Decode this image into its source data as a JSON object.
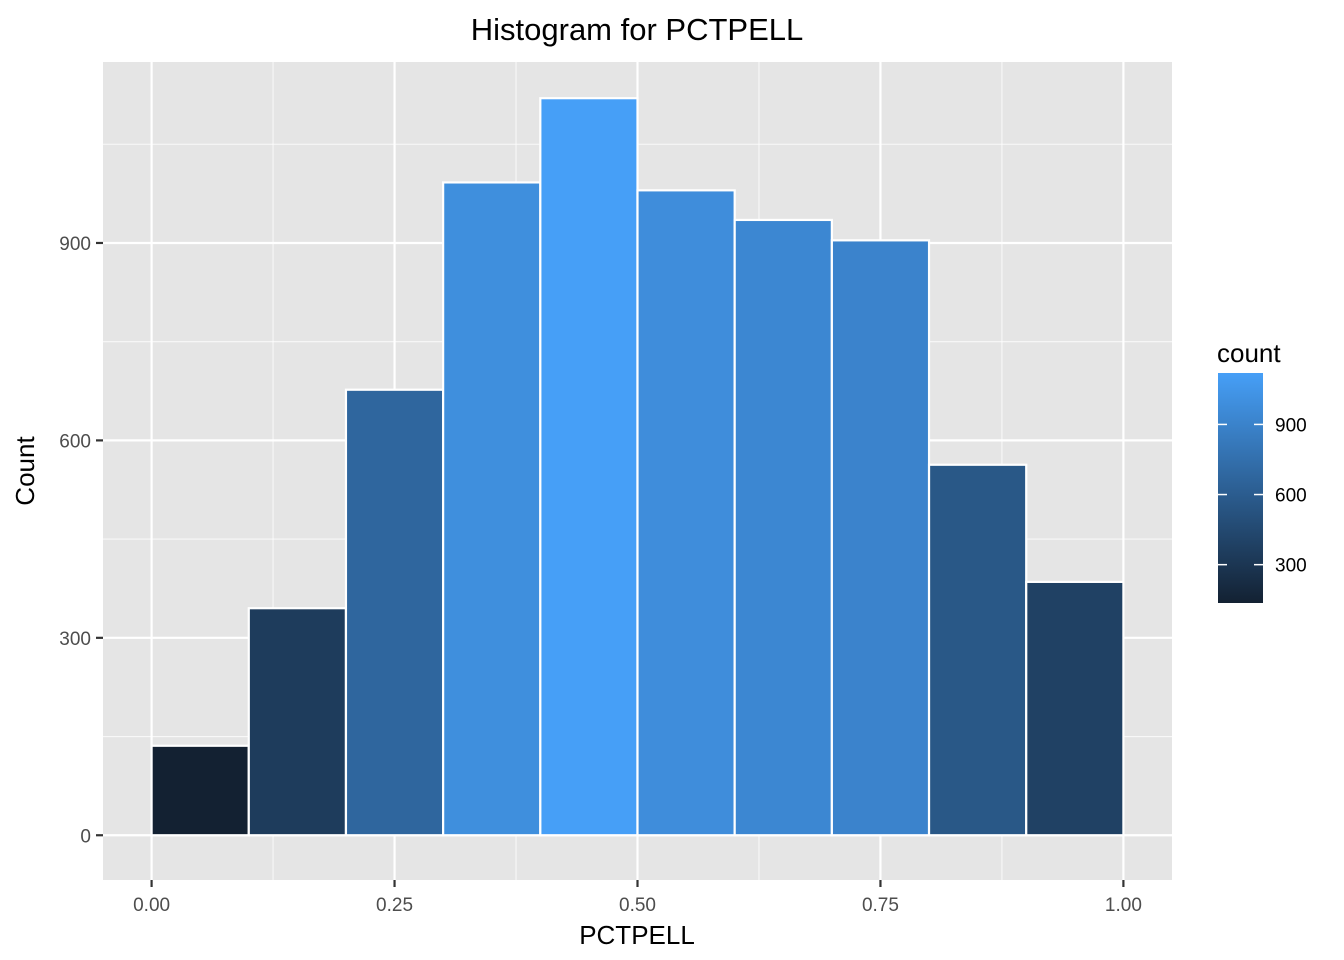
{
  "chart_data": {
    "type": "bar",
    "title": "Histogram for PCTPELL",
    "xlabel": "PCTPELL",
    "ylabel": "Count",
    "xlim": [
      -0.05,
      1.05
    ],
    "ylim": [
      -68,
      1175
    ],
    "x_ticks": [
      {
        "value": 0.0,
        "label": "0.00"
      },
      {
        "value": 0.25,
        "label": "0.25"
      },
      {
        "value": 0.5,
        "label": "0.50"
      },
      {
        "value": 0.75,
        "label": "0.75"
      },
      {
        "value": 1.0,
        "label": "1.00"
      }
    ],
    "y_ticks": [
      {
        "value": 0,
        "label": "0"
      },
      {
        "value": 300,
        "label": "300"
      },
      {
        "value": 600,
        "label": "600"
      },
      {
        "value": 900,
        "label": "900"
      }
    ],
    "bins": [
      {
        "x0": 0.0,
        "x1": 0.1,
        "count": 136
      },
      {
        "x0": 0.1,
        "x1": 0.2,
        "count": 345
      },
      {
        "x0": 0.2,
        "x1": 0.3,
        "count": 677
      },
      {
        "x0": 0.3,
        "x1": 0.4,
        "count": 992
      },
      {
        "x0": 0.4,
        "x1": 0.5,
        "count": 1120
      },
      {
        "x0": 0.5,
        "x1": 0.6,
        "count": 980
      },
      {
        "x0": 0.6,
        "x1": 0.7,
        "count": 935
      },
      {
        "x0": 0.7,
        "x1": 0.8,
        "count": 904
      },
      {
        "x0": 0.8,
        "x1": 0.9,
        "count": 563
      },
      {
        "x0": 0.9,
        "x1": 1.0,
        "count": 385
      }
    ],
    "grid": true,
    "panel_background": "#e5e5e5",
    "legend": {
      "title": "count",
      "placement": "right",
      "color_low": "#132132",
      "color_high": "#469ff7",
      "range": [
        136,
        1120
      ],
      "ticks": [
        {
          "value": 300,
          "label": "300"
        },
        {
          "value": 600,
          "label": "600"
        },
        {
          "value": 900,
          "label": "900"
        }
      ]
    }
  }
}
